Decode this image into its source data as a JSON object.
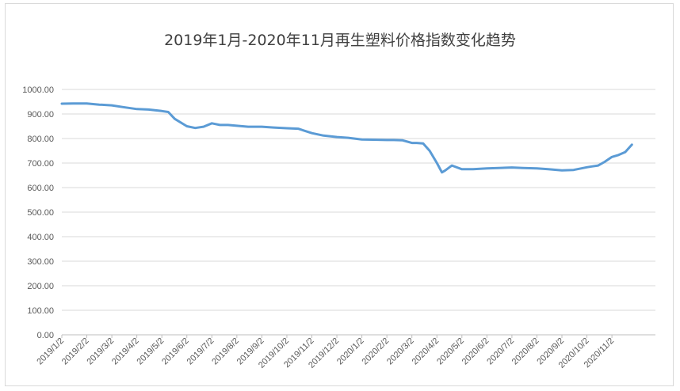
{
  "chart_data": {
    "type": "line",
    "title": "2019年1月-2020年11月再生塑料价格指数变化趋势",
    "xlabel": "",
    "ylabel": "",
    "ylim": [
      0,
      1000
    ],
    "yticks": [
      "0.00",
      "100.00",
      "200.00",
      "300.00",
      "400.00",
      "500.00",
      "600.00",
      "700.00",
      "800.00",
      "900.00",
      "1000.00"
    ],
    "x_tick_labels": [
      "2019/1/2",
      "2019/2/2",
      "2019/3/2",
      "2019/4/2",
      "2019/5/2",
      "2019/6/2",
      "2019/7/2",
      "2019/8/2",
      "2019/9/2",
      "2019/10/2",
      "2019/11/2",
      "2019/12/2",
      "2020/1/2",
      "2020/2/2",
      "2020/3/2",
      "2020/4/2",
      "2020/5/2",
      "2020/6/2",
      "2020/7/2",
      "2020/8/2",
      "2020/9/2",
      "2020/10/2",
      "2020/11/2"
    ],
    "grid": true,
    "legend": "none",
    "line_color": "#5b9bd5",
    "series": [
      {
        "x": [
          "2019/1/2",
          "2019/1/16",
          "2019/2/2",
          "2019/2/16",
          "2019/3/2",
          "2019/3/16",
          "2019/4/2",
          "2019/4/16",
          "2019/5/2",
          "2019/5/10",
          "2019/5/18",
          "2019/6/2",
          "2019/6/12",
          "2019/6/22",
          "2019/7/2",
          "2019/7/12",
          "2019/7/22",
          "2019/8/2",
          "2019/8/16",
          "2019/9/2",
          "2019/9/16",
          "2019/10/2",
          "2019/10/16",
          "2019/11/2",
          "2019/11/16",
          "2019/12/2",
          "2019/12/16",
          "2020/1/2",
          "2020/1/16",
          "2020/2/2",
          "2020/2/10",
          "2020/2/20",
          "2020/3/2",
          "2020/3/8",
          "2020/3/16",
          "2020/3/24",
          "2020/4/2",
          "2020/4/8",
          "2020/4/12",
          "2020/4/20",
          "2020/5/2",
          "2020/5/16",
          "2020/6/2",
          "2020/6/16",
          "2020/7/2",
          "2020/7/16",
          "2020/8/2",
          "2020/8/16",
          "2020/9/2",
          "2020/9/16",
          "2020/10/2",
          "2020/10/8",
          "2020/10/16",
          "2020/10/24",
          "2020/11/2",
          "2020/11/10",
          "2020/11/18",
          "2020/11/26"
        ],
        "values": [
          942,
          943,
          943,
          938,
          935,
          928,
          920,
          918,
          912,
          908,
          880,
          850,
          843,
          848,
          862,
          855,
          855,
          852,
          848,
          848,
          845,
          842,
          840,
          822,
          812,
          806,
          803,
          796,
          795,
          794,
          794,
          793,
          782,
          782,
          780,
          750,
          700,
          662,
          670,
          690,
          675,
          675,
          678,
          680,
          682,
          680,
          678,
          675,
          670,
          672,
          683,
          686,
          690,
          705,
          725,
          733,
          745,
          775
        ]
      }
    ]
  }
}
